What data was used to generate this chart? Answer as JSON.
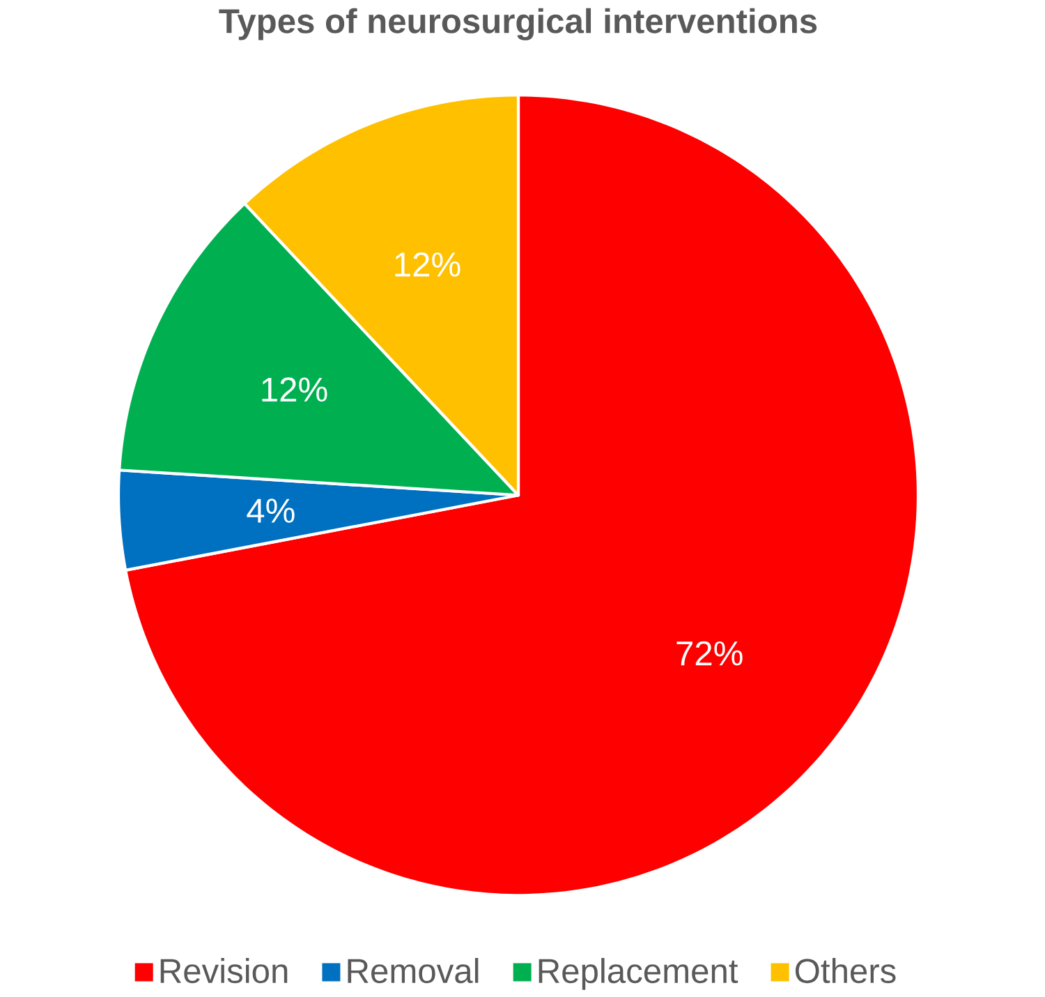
{
  "chart_data": {
    "type": "pie",
    "title": "Types of neurosurgical interventions",
    "categories": [
      "Revision",
      "Removal",
      "Replacement",
      "Others"
    ],
    "values": [
      72,
      4,
      12,
      12
    ],
    "colors": [
      "#ff0000",
      "#0070c0",
      "#00b050",
      "#ffc000"
    ],
    "value_labels": [
      "72%",
      "4%",
      "12%",
      "12%"
    ],
    "legend": "bottom"
  }
}
